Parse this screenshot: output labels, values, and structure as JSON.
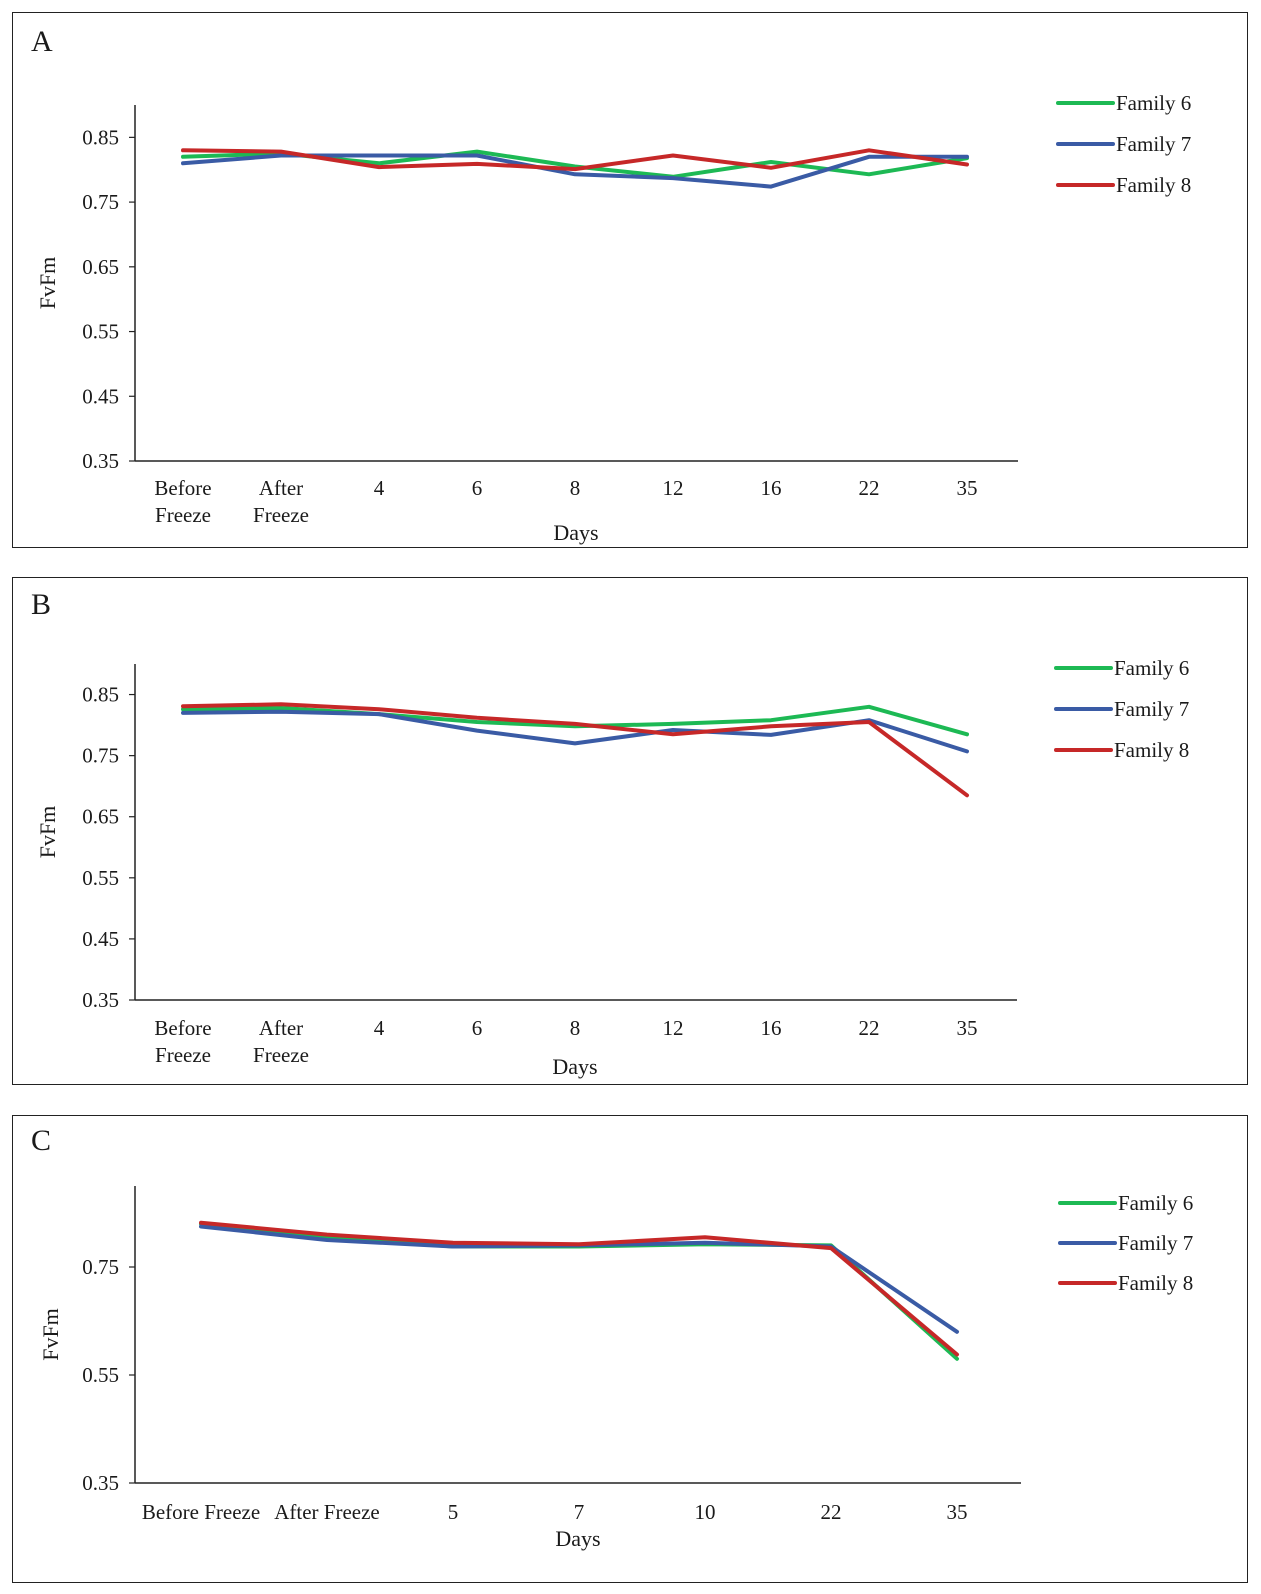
{
  "chart_data": [
    {
      "panel": "A",
      "type": "line",
      "categories": [
        "Before Freeze",
        "After Freeze",
        "4",
        "6",
        "8",
        "12",
        "16",
        "22",
        "35"
      ],
      "series": [
        {
          "name": "Family 6",
          "color": "#1db954",
          "values": [
            0.82,
            0.825,
            0.81,
            0.828,
            0.805,
            0.789,
            0.812,
            0.793,
            0.818
          ]
        },
        {
          "name": "Family 7",
          "color": "#3a5ba5",
          "values": [
            0.81,
            0.822,
            0.822,
            0.822,
            0.793,
            0.787,
            0.774,
            0.82,
            0.82
          ]
        },
        {
          "name": "Family 8",
          "color": "#c62828",
          "values": [
            0.83,
            0.828,
            0.804,
            0.809,
            0.801,
            0.822,
            0.803,
            0.83,
            0.808
          ]
        }
      ],
      "yticks": [
        "0.35",
        "0.45",
        "0.55",
        "0.65",
        "0.75",
        "0.85"
      ],
      "ylim": [
        0.35,
        0.9
      ],
      "xlabel": "Days",
      "ylabel": "FvFm",
      "legend": "right",
      "grid": false
    },
    {
      "panel": "B",
      "type": "line",
      "categories": [
        "Before Freeze",
        "After Freeze",
        "4",
        "6",
        "8",
        "12",
        "16",
        "22",
        "35"
      ],
      "series": [
        {
          "name": "Family 6",
          "color": "#1db954",
          "values": [
            0.826,
            0.828,
            0.818,
            0.805,
            0.798,
            0.802,
            0.808,
            0.83,
            0.785
          ]
        },
        {
          "name": "Family 7",
          "color": "#3a5ba5",
          "values": [
            0.82,
            0.822,
            0.818,
            0.791,
            0.77,
            0.792,
            0.784,
            0.808,
            0.757
          ]
        },
        {
          "name": "Family 8",
          "color": "#c62828",
          "values": [
            0.831,
            0.834,
            0.826,
            0.812,
            0.802,
            0.785,
            0.798,
            0.805,
            0.685
          ]
        }
      ],
      "yticks": [
        "0.35",
        "0.45",
        "0.55",
        "0.65",
        "0.75",
        "0.85"
      ],
      "ylim": [
        0.35,
        0.9
      ],
      "xlabel": "Days",
      "ylabel": "FvFm",
      "legend": "right",
      "grid": false
    },
    {
      "panel": "C",
      "type": "line",
      "categories": [
        "Before Freeze",
        "After Freeze",
        "5",
        "7",
        "10",
        "22",
        "35"
      ],
      "series": [
        {
          "name": "Family 6",
          "color": "#1db954",
          "x": [
            0,
            1,
            2,
            3,
            4,
            5,
            6
          ],
          "values": [
            0.83,
            0.805,
            0.788,
            0.788,
            0.792,
            0.79,
            0.58
          ]
        },
        {
          "name": "Family 7",
          "color": "#3a5ba5",
          "x": [
            0,
            1,
            2,
            3,
            4,
            5,
            6
          ],
          "values": [
            0.825,
            0.8,
            0.788,
            0.79,
            0.795,
            0.788,
            0.63
          ]
        },
        {
          "name": "Family 8",
          "color": "#c62828",
          "x": [
            0,
            1,
            2,
            3,
            4,
            5,
            6
          ],
          "values": [
            0.832,
            0.81,
            0.795,
            0.792,
            0.805,
            0.785,
            0.588
          ]
        }
      ],
      "yticks": [
        "0.35",
        "0.55",
        "0.75"
      ],
      "ylim": [
        0.35,
        0.9
      ],
      "xlabel": "Days",
      "ylabel": "FvFm",
      "legend": "right",
      "grid": false
    }
  ]
}
